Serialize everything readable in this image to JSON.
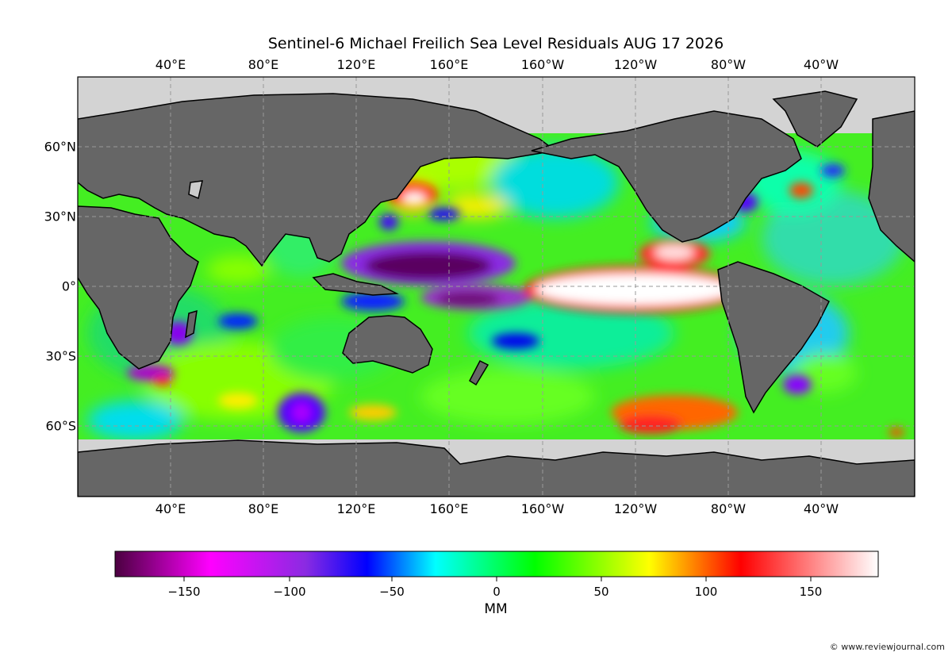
{
  "map": {
    "title": "Sentinel-6 Michael Freilich Sea Level Residuals AUG 17 2026",
    "longitude_ticks": [
      "40°E",
      "80°E",
      "120°E",
      "160°E",
      "160°W",
      "120°W",
      "80°W",
      "40°W"
    ],
    "latitude_ticks": [
      "60°N",
      "30°N",
      "0°",
      "30°S",
      "60°S"
    ],
    "colors": {
      "land": "#666666",
      "ice": "#d3d3d3",
      "grid": "#999999"
    }
  },
  "colorbar": {
    "label": "MM",
    "ticks": [
      "−150",
      "−100",
      "−50",
      "0",
      "50",
      "100",
      "150"
    ],
    "range": [
      -180,
      180
    ],
    "colors": [
      "#4b0040",
      "#ff00ff",
      "#8a2be2",
      "#0000ff",
      "#00ffff",
      "#00ff00",
      "#ffff00",
      "#ff0000",
      "#ffffff"
    ]
  },
  "credit": "© www.reviewjournal.com"
}
